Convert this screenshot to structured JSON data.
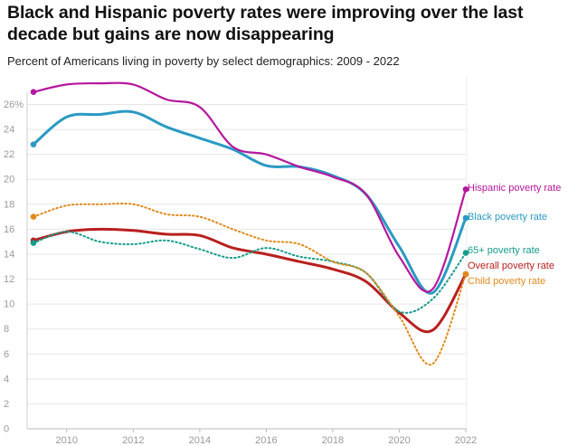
{
  "title": "Black and Hispanic poverty rates were improving over the last decade but gains are now disappearing",
  "subtitle": "Percent of Americans living in poverty by select demographics: 2009 - 2022",
  "chart_data": {
    "type": "line",
    "xlim": [
      2009,
      2022
    ],
    "ylim": [
      0,
      27
    ],
    "x_ticks": [
      2010,
      2012,
      2014,
      2016,
      2018,
      2020,
      2022
    ],
    "x_tick_labels": [
      "2010",
      "2012",
      "2014",
      "2016",
      "2018",
      "2020",
      "2022"
    ],
    "y_ticks": [
      0,
      2,
      4,
      6,
      8,
      10,
      12,
      14,
      16,
      18,
      20,
      22,
      24,
      26
    ],
    "y_tick_labels": [
      "0",
      "2",
      "4",
      "6",
      "8",
      "10",
      "12",
      "14",
      "16",
      "18",
      "20",
      "22",
      "24",
      "26%"
    ],
    "grid": "horizontal",
    "legend": "direct labels at right end of each line",
    "x": [
      2009,
      2010,
      2011,
      2012,
      2013,
      2014,
      2015,
      2016,
      2017,
      2018,
      2019,
      2020,
      2021,
      2022
    ],
    "series": [
      {
        "name": "Hispanic poverty rate",
        "color": "#b5179e",
        "style": "solid",
        "width": 2.2,
        "values": [
          27.0,
          27.6,
          27.7,
          27.6,
          26.4,
          25.8,
          22.6,
          22.0,
          21.0,
          20.2,
          18.8,
          13.8,
          11.2,
          19.2
        ]
      },
      {
        "name": "Black poverty rate",
        "color": "#2a9ac2",
        "style": "solid",
        "width": 3,
        "values": [
          22.8,
          25.0,
          25.2,
          25.4,
          24.2,
          23.3,
          22.4,
          21.1,
          21.0,
          20.3,
          18.8,
          14.6,
          10.9,
          16.9
        ]
      },
      {
        "name": "65+ poverty rate",
        "color": "#169c8c",
        "style": "dotted",
        "width": 2,
        "values": [
          14.9,
          15.8,
          15.0,
          14.8,
          15.1,
          14.4,
          13.7,
          14.5,
          13.8,
          13.4,
          12.5,
          9.4,
          10.4,
          14.1
        ]
      },
      {
        "name": "Overall poverty rate",
        "color": "#b8201f",
        "style": "solid",
        "width": 3,
        "values": [
          15.1,
          15.8,
          16.0,
          15.9,
          15.6,
          15.5,
          14.5,
          14.0,
          13.4,
          12.8,
          11.8,
          9.3,
          7.9,
          12.4
        ]
      },
      {
        "name": "Child poverty rate",
        "color": "#e08a1c",
        "style": "dotted",
        "width": 2,
        "values": [
          17.0,
          17.9,
          18.0,
          18.0,
          17.2,
          17.0,
          16.0,
          15.1,
          14.8,
          13.4,
          12.5,
          9.0,
          5.2,
          12.4
        ]
      }
    ]
  }
}
